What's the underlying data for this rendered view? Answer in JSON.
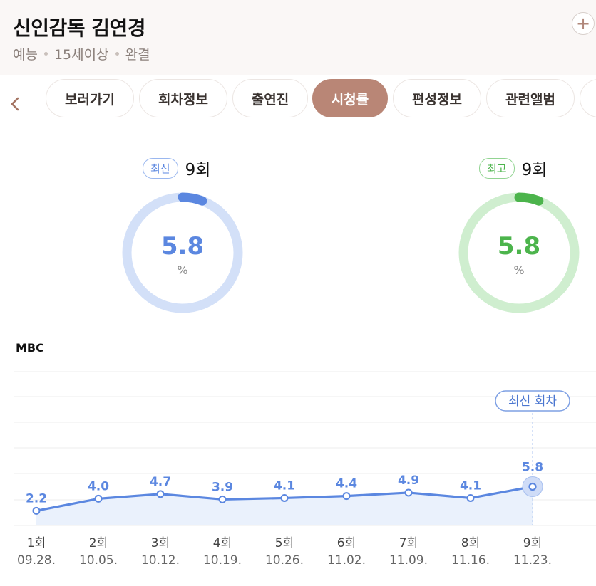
{
  "header": {
    "title": "신인감독 김연경",
    "meta": [
      "예능",
      "15세이상",
      "완결"
    ],
    "add_icon": "plus-icon"
  },
  "tabs": [
    {
      "label": "보러가기",
      "active": false
    },
    {
      "label": "회차정보",
      "active": false
    },
    {
      "label": "출연진",
      "active": false
    },
    {
      "label": "시청률",
      "active": true
    },
    {
      "label": "편성정보",
      "active": false
    },
    {
      "label": "관련앨범",
      "active": false
    }
  ],
  "latest": {
    "badge": "최신",
    "episode": "9회",
    "value": "5.8",
    "unit": "%",
    "color": "#5b87e0",
    "track": "#d3e0f8",
    "fraction": 0.058
  },
  "best": {
    "badge": "최고",
    "episode": "9회",
    "value": "5.8",
    "unit": "%",
    "color": "#4cb44c",
    "track": "#cfeecf",
    "fraction": 0.058
  },
  "chart_data": {
    "type": "line",
    "title": "MBC",
    "categories": [
      "1회",
      "2회",
      "3회",
      "4회",
      "5회",
      "6회",
      "7회",
      "8회",
      "9회"
    ],
    "dates": [
      "09.28.",
      "10.05.",
      "10.12.",
      "10.19.",
      "10.26.",
      "11.02.",
      "11.09.",
      "11.16.",
      "11.23."
    ],
    "values": [
      2.2,
      4.0,
      4.7,
      3.9,
      4.1,
      4.4,
      4.9,
      4.1,
      5.8
    ],
    "labels": [
      "2.2",
      "4.0",
      "4.7",
      "3.9",
      "4.1",
      "4.4",
      "4.9",
      "4.1",
      "5.8"
    ],
    "ylim": [
      0,
      12
    ],
    "annotation": {
      "text": "최신 회차",
      "index": 8
    },
    "line_color": "#5b87e0",
    "fill_color": "#eaf1fc",
    "grid": true
  }
}
